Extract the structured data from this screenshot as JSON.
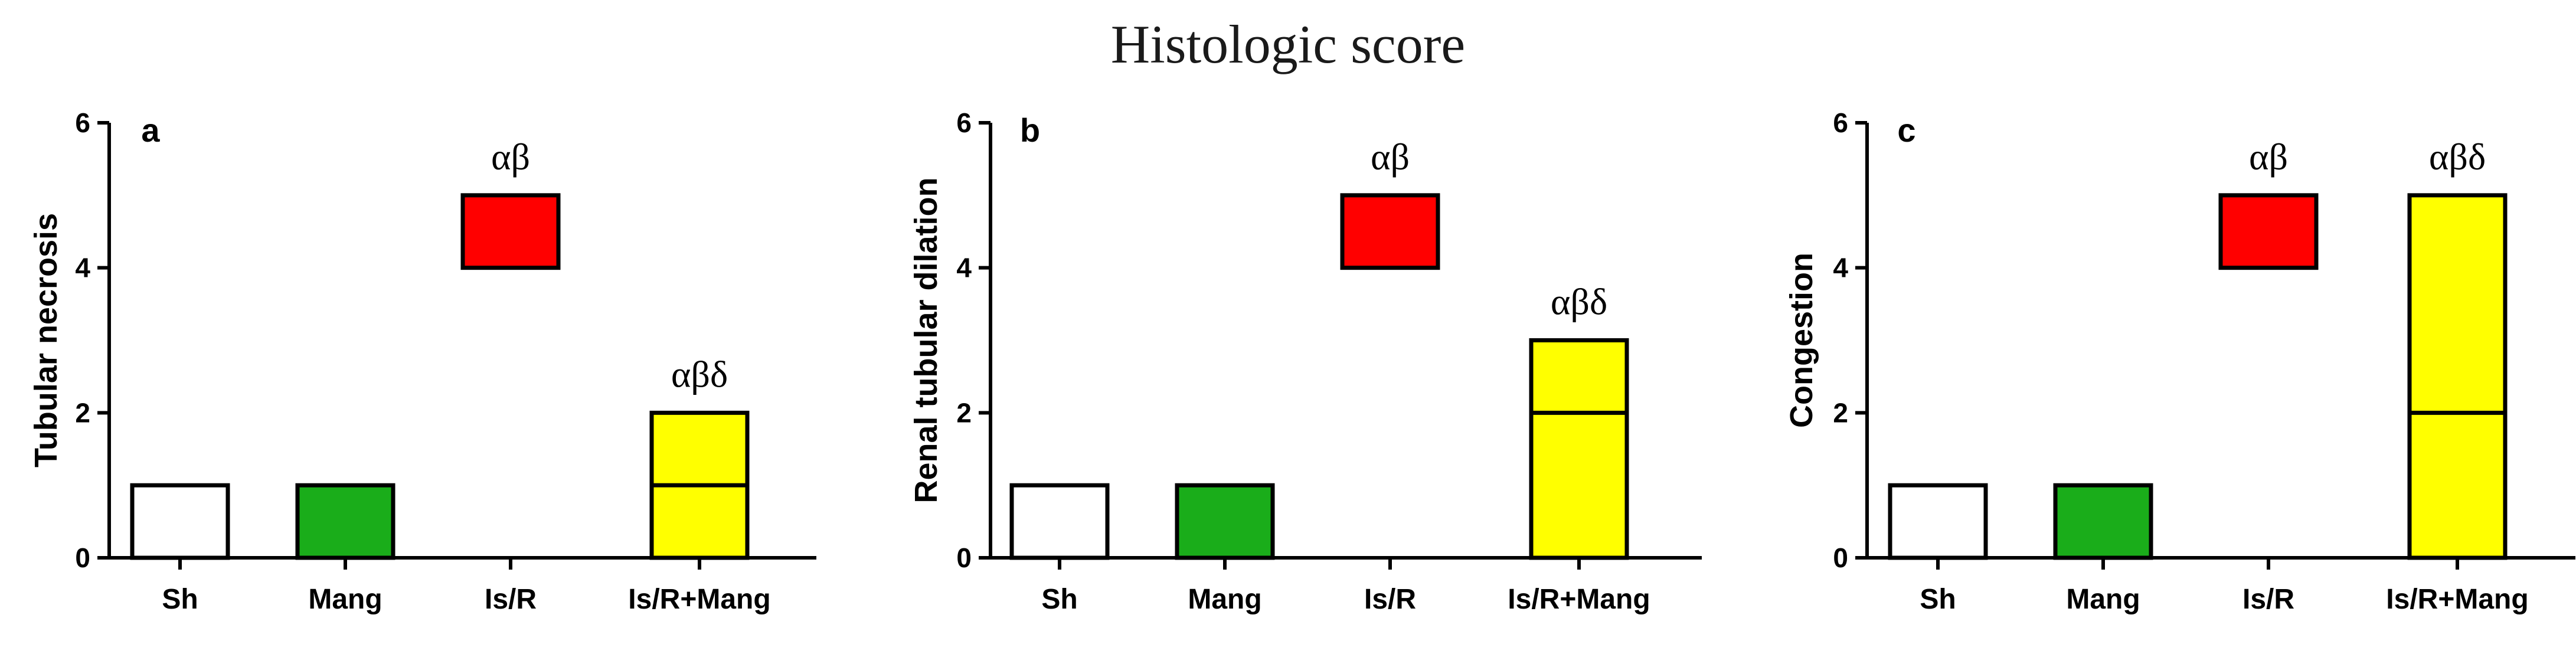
{
  "figure_title": "Histologic score",
  "colors": {
    "Sh": "#ffffff",
    "Mang": "#1aad1a",
    "Is/R": "#ff0000",
    "Is/R+Mang": "#ffff00"
  },
  "chart_data": [
    {
      "type": "box",
      "panel": "a",
      "ylabel": "Tubular necrosis",
      "ylim": [
        0,
        6
      ],
      "yticks": [
        0,
        2,
        4,
        6
      ],
      "categories": [
        "Sh",
        "Mang",
        "Is/R",
        "Is/R+Mang"
      ],
      "boxes": [
        {
          "category": "Sh",
          "low": 0,
          "high": 1,
          "median": null
        },
        {
          "category": "Mang",
          "low": 0,
          "high": 1,
          "median": null
        },
        {
          "category": "Is/R",
          "low": 4,
          "high": 5,
          "median": null
        },
        {
          "category": "Is/R+Mang",
          "low": 0,
          "high": 2,
          "median": 1
        }
      ],
      "annotations": [
        {
          "category": "Is/R",
          "text": "αβ"
        },
        {
          "category": "Is/R+Mang",
          "text": "αβδ"
        }
      ]
    },
    {
      "type": "box",
      "panel": "b",
      "ylabel": "Renal tubular dilation",
      "ylim": [
        0,
        6
      ],
      "yticks": [
        0,
        2,
        4,
        6
      ],
      "categories": [
        "Sh",
        "Mang",
        "Is/R",
        "Is/R+Mang"
      ],
      "boxes": [
        {
          "category": "Sh",
          "low": 0,
          "high": 1,
          "median": null
        },
        {
          "category": "Mang",
          "low": 0,
          "high": 1,
          "median": null
        },
        {
          "category": "Is/R",
          "low": 4,
          "high": 5,
          "median": null
        },
        {
          "category": "Is/R+Mang",
          "low": 0,
          "high": 3,
          "median": 2
        }
      ],
      "annotations": [
        {
          "category": "Is/R",
          "text": "αβ"
        },
        {
          "category": "Is/R+Mang",
          "text": "αβδ"
        }
      ]
    },
    {
      "type": "box",
      "panel": "c",
      "ylabel": "Congestion",
      "ylim": [
        0,
        6
      ],
      "yticks": [
        0,
        2,
        4,
        6
      ],
      "categories": [
        "Sh",
        "Mang",
        "Is/R",
        "Is/R+Mang"
      ],
      "boxes": [
        {
          "category": "Sh",
          "low": 0,
          "high": 1,
          "median": null
        },
        {
          "category": "Mang",
          "low": 0,
          "high": 1,
          "median": null
        },
        {
          "category": "Is/R",
          "low": 4,
          "high": 5,
          "median": null
        },
        {
          "category": "Is/R+Mang",
          "low": 0,
          "high": 5,
          "median": 2
        }
      ],
      "annotations": [
        {
          "category": "Is/R",
          "text": "αβ"
        },
        {
          "category": "Is/R+Mang",
          "text": "αβδ"
        }
      ]
    }
  ]
}
